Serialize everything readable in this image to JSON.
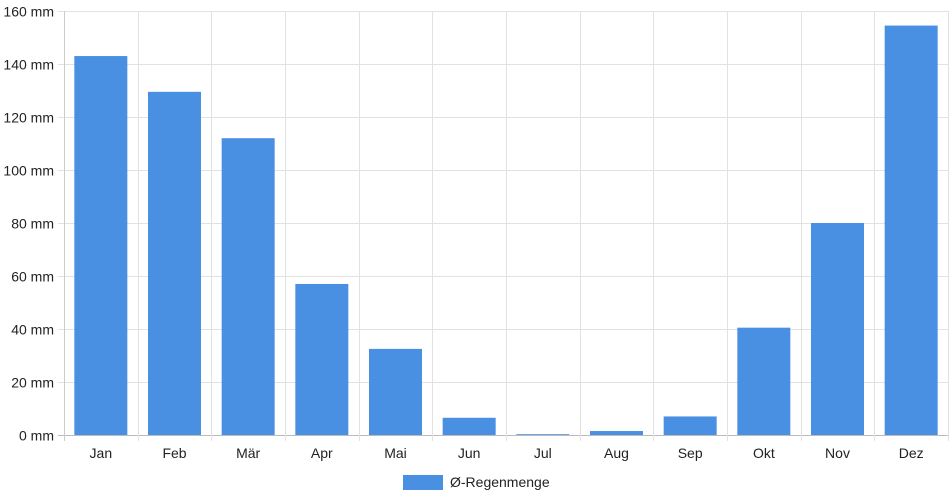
{
  "chart_data": {
    "type": "bar",
    "title": "",
    "xlabel": "",
    "ylabel": "",
    "y_unit": "mm",
    "ylim": [
      0,
      160
    ],
    "y_ticks": [
      0,
      20,
      40,
      60,
      80,
      100,
      120,
      140,
      160
    ],
    "y_tick_labels": [
      "0 mm",
      "20 mm",
      "40 mm",
      "60 mm",
      "80 mm",
      "100 mm",
      "120 mm",
      "140 mm",
      "160 mm"
    ],
    "categories": [
      "Jan",
      "Feb",
      "Mär",
      "Apr",
      "Mai",
      "Jun",
      "Jul",
      "Aug",
      "Sep",
      "Okt",
      "Nov",
      "Dez"
    ],
    "series": [
      {
        "name": "Ø-Regenmenge",
        "color": "#4a90e2",
        "values": [
          143,
          129.5,
          112,
          57,
          32.5,
          6.5,
          0.3,
          1.5,
          7,
          40.5,
          80,
          154.5
        ]
      }
    ],
    "grid": true,
    "legend_position": "bottom-center"
  }
}
